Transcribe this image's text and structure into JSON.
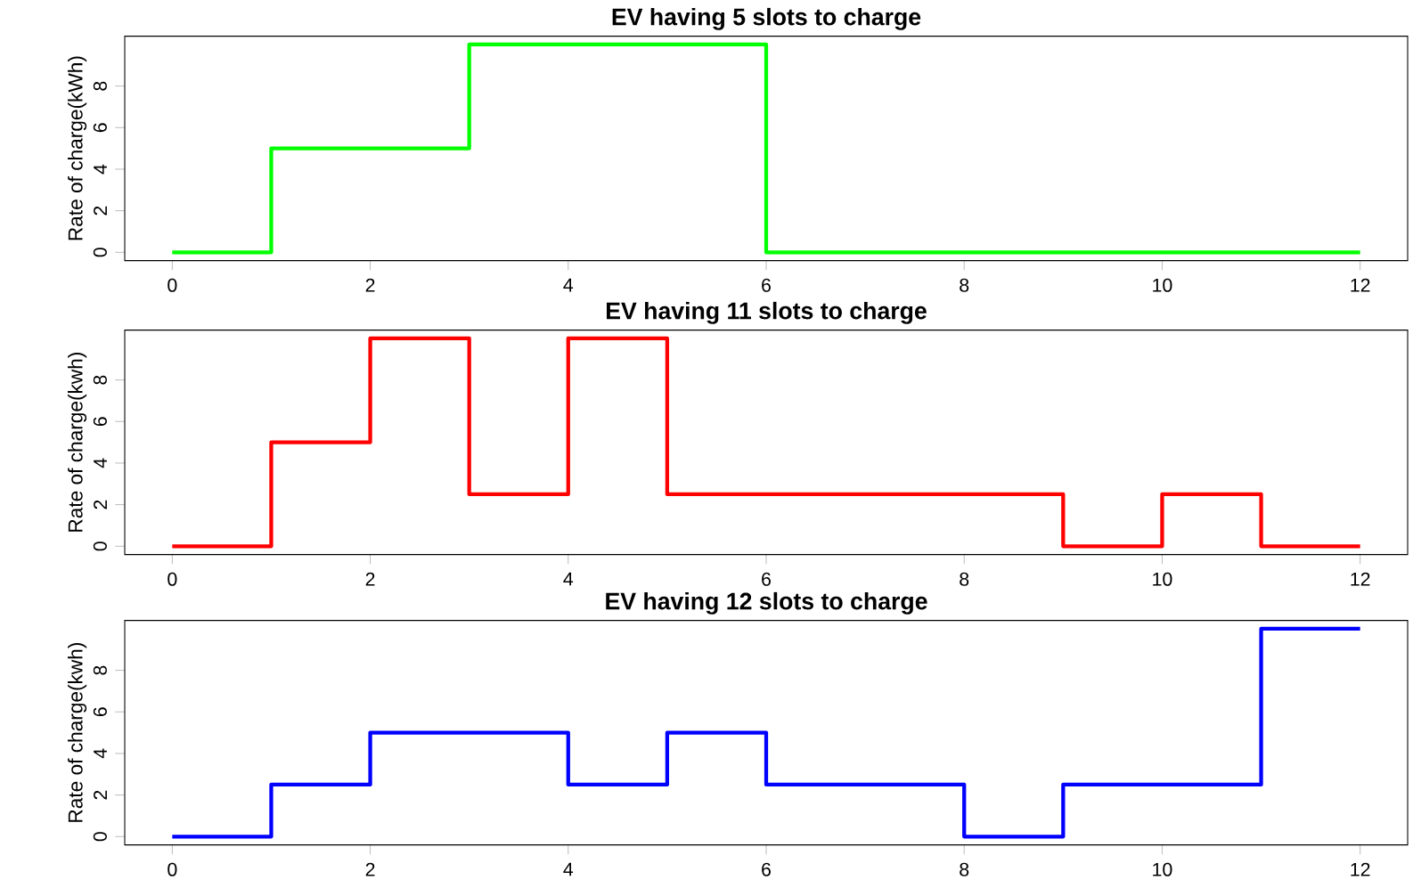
{
  "chart_data": [
    {
      "type": "step",
      "title": "EV having 5 slots to charge",
      "ylabel": "Rate of charge(kWh)",
      "x": [
        0,
        1,
        2,
        3,
        4,
        5,
        6,
        7,
        8,
        9,
        10,
        11,
        12
      ],
      "series": [
        {
          "color": "#00ff00",
          "values": [
            0,
            5,
            5,
            10,
            10,
            10,
            0,
            0,
            0,
            0,
            0,
            0,
            0
          ]
        }
      ],
      "xlim": [
        -0.48,
        12.48
      ],
      "xticks": [
        0,
        2,
        4,
        6,
        8,
        10,
        12
      ],
      "ylim": [
        -0.4,
        10.4
      ],
      "yticks": [
        0,
        2,
        4,
        6,
        8
      ]
    },
    {
      "type": "step",
      "title": "EV having 11 slots to charge",
      "ylabel": "Rate of charge(kwh)",
      "x": [
        0,
        1,
        2,
        3,
        4,
        5,
        6,
        7,
        8,
        9,
        10,
        11,
        12
      ],
      "series": [
        {
          "color": "#ff0000",
          "values": [
            0,
            5,
            10,
            2.5,
            10,
            2.5,
            2.5,
            2.5,
            2.5,
            0,
            2.5,
            0,
            0
          ]
        }
      ],
      "xlim": [
        -0.48,
        12.48
      ],
      "xticks": [
        0,
        2,
        4,
        6,
        8,
        10,
        12
      ],
      "ylim": [
        -0.4,
        10.4
      ],
      "yticks": [
        0,
        2,
        4,
        6,
        8
      ]
    },
    {
      "type": "step",
      "title": "EV having 12 slots to charge",
      "ylabel": "Rate of charge(kwh)",
      "x": [
        0,
        1,
        2,
        3,
        4,
        5,
        6,
        7,
        8,
        9,
        10,
        11,
        12
      ],
      "series": [
        {
          "color": "#0000ff",
          "values": [
            0,
            2.5,
            5,
            5,
            2.5,
            5,
            2.5,
            2.5,
            0,
            2.5,
            2.5,
            10,
            10
          ]
        }
      ],
      "xlim": [
        -0.48,
        12.48
      ],
      "xticks": [
        0,
        2,
        4,
        6,
        8,
        10,
        12
      ],
      "ylim": [
        -0.4,
        10.4
      ],
      "yticks": [
        0,
        2,
        4,
        6,
        8
      ]
    }
  ]
}
